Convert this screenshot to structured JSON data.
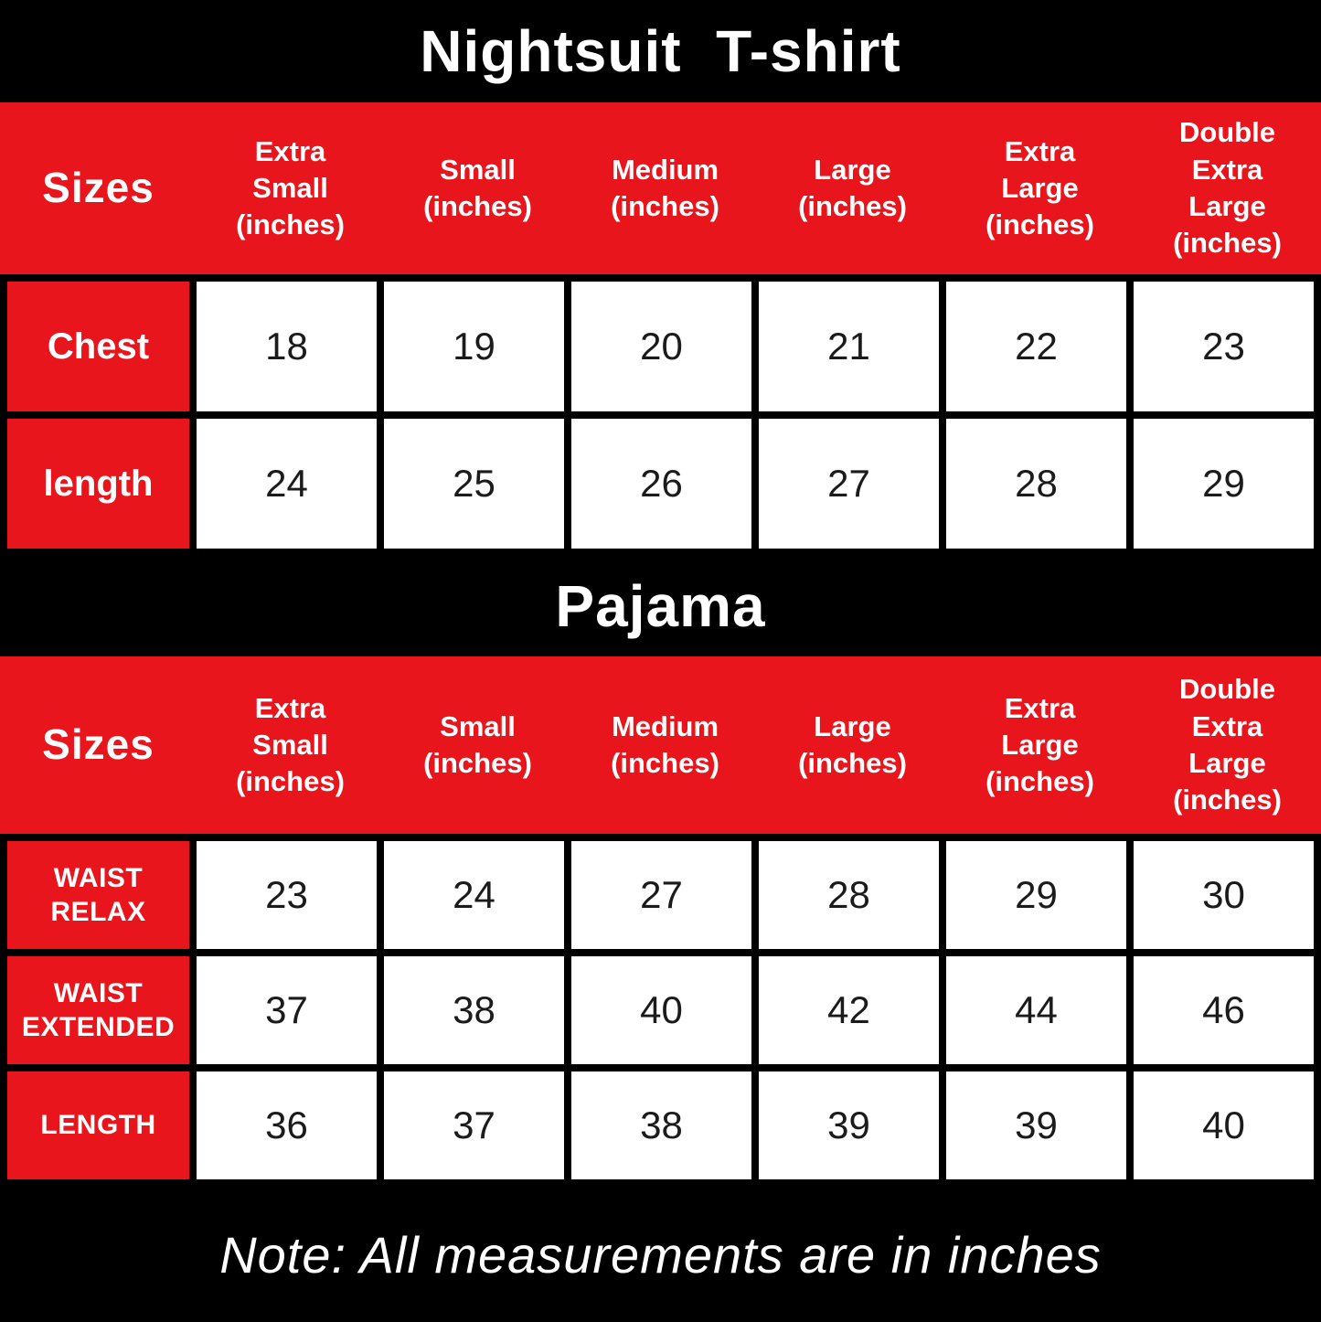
{
  "colors": {
    "accent_red": "#E8151C",
    "band_black": "#000000",
    "cell_white": "#ffffff"
  },
  "tshirt": {
    "title": "Nightsuit  T-shirt",
    "sizes_label": "Sizes",
    "columns": [
      "Extra\nSmall\n(inches)",
      "Small\n(inches)",
      "Medium\n(inches)",
      "Large\n(inches)",
      "Extra\nLarge\n(inches)",
      "Double\nExtra\nLarge\n(inches)"
    ],
    "rows": [
      {
        "label": "Chest",
        "values": [
          "18",
          "19",
          "20",
          "21",
          "22",
          "23"
        ]
      },
      {
        "label": "length",
        "values": [
          "24",
          "25",
          "26",
          "27",
          "28",
          "29"
        ]
      }
    ]
  },
  "pajama": {
    "title": "Pajama",
    "sizes_label": "Sizes",
    "columns": [
      "Extra\nSmall\n(inches)",
      "Small\n(inches)",
      "Medium\n(inches)",
      "Large\n(inches)",
      "Extra\nLarge\n(inches)",
      "Double\nExtra\nLarge\n(inches)"
    ],
    "rows": [
      {
        "label": "WAIST\nRELAX",
        "values": [
          "23",
          "24",
          "27",
          "28",
          "29",
          "30"
        ]
      },
      {
        "label": "WAIST\nEXTENDED",
        "values": [
          "37",
          "38",
          "40",
          "42",
          "44",
          "46"
        ]
      },
      {
        "label": "LENGTH",
        "values": [
          "36",
          "37",
          "38",
          "39",
          "39",
          "40"
        ]
      }
    ]
  },
  "note": "Note: All measurements are in inches",
  "chart_data": [
    {
      "type": "table",
      "title": "Nightsuit T-shirt",
      "columns": [
        "Extra Small (inches)",
        "Small (inches)",
        "Medium (inches)",
        "Large (inches)",
        "Extra Large (inches)",
        "Double Extra Large (inches)"
      ],
      "rows": [
        {
          "label": "Chest",
          "values": [
            18,
            19,
            20,
            21,
            22,
            23
          ]
        },
        {
          "label": "length",
          "values": [
            24,
            25,
            26,
            27,
            28,
            29
          ]
        }
      ]
    },
    {
      "type": "table",
      "title": "Pajama",
      "columns": [
        "Extra Small (inches)",
        "Small (inches)",
        "Medium (inches)",
        "Large (inches)",
        "Extra Large (inches)",
        "Double Extra Large (inches)"
      ],
      "rows": [
        {
          "label": "WAIST RELAX",
          "values": [
            23,
            24,
            27,
            28,
            29,
            30
          ]
        },
        {
          "label": "WAIST EXTENDED",
          "values": [
            37,
            38,
            40,
            42,
            44,
            46
          ]
        },
        {
          "label": "LENGTH",
          "values": [
            36,
            37,
            38,
            39,
            39,
            40
          ]
        }
      ]
    }
  ]
}
